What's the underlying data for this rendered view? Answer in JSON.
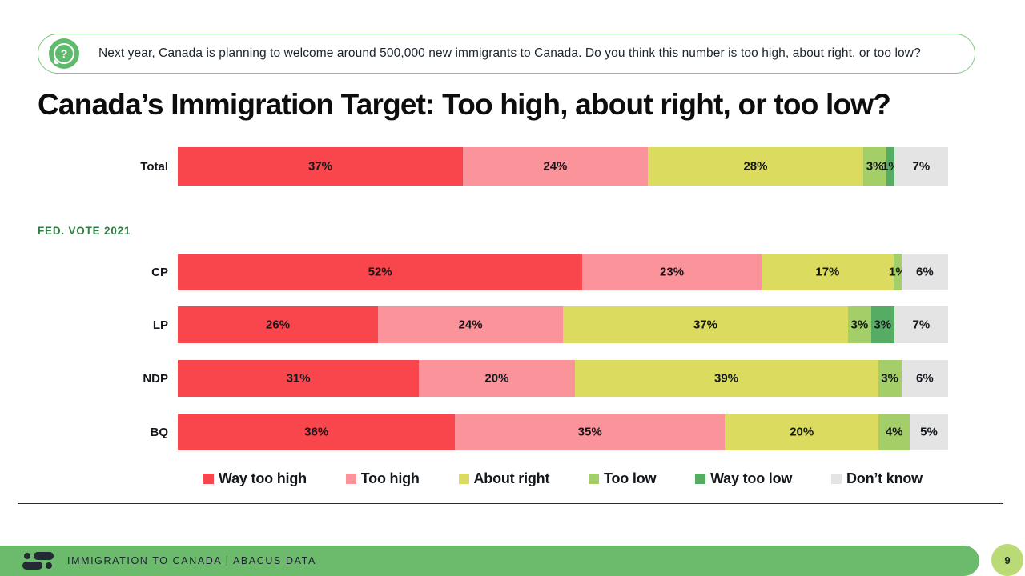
{
  "question_box": {
    "icon": "question-bubble-icon",
    "text": "Next year, Canada is planning to welcome around 500,000 new immigrants to Canada. Do you think this number is too high, about right, or too low?",
    "question_mark": "?"
  },
  "title": "Canada’s Immigration Target: Too high, about right, or too low?",
  "section_label": "FED. VOTE 2021",
  "chart_data": {
    "type": "bar",
    "orientation": "horizontal-stacked",
    "unit": "%",
    "value_range": [
      0,
      100
    ],
    "grid": false,
    "legend_position": "bottom",
    "series_names": [
      "Way too high",
      "Too high",
      "About right",
      "Too low",
      "Way too low",
      "Don’t know"
    ],
    "series_colors": [
      "#f9454c",
      "#fb939a",
      "#dbdb60",
      "#a4ce68",
      "#57ac63",
      "#e4e4e4"
    ],
    "groups": [
      {
        "label": "Total",
        "section": "total",
        "values": [
          37,
          24,
          28,
          3,
          1,
          7
        ]
      },
      {
        "label": "CP",
        "section": "fed-vote",
        "values": [
          52,
          23,
          17,
          1,
          0,
          6
        ]
      },
      {
        "label": "LP",
        "section": "fed-vote",
        "values": [
          26,
          24,
          37,
          3,
          3,
          7
        ]
      },
      {
        "label": "NDP",
        "section": "fed-vote",
        "values": [
          31,
          20,
          39,
          3,
          0,
          6
        ]
      },
      {
        "label": "BQ",
        "section": "fed-vote",
        "values": [
          36,
          35,
          20,
          4,
          0,
          5
        ]
      }
    ]
  },
  "footer": {
    "label": "IMMIGRATION TO CANADA | ABACUS DATA",
    "page_number": "9",
    "logo": "abacus-data-logo"
  },
  "colors": {
    "accent_green": "#6cba6b",
    "question_border_green": "#7fc67f",
    "icon_green": "#5fba6c",
    "section_label_green": "#2f7c42",
    "page_circle_green": "#b9da74",
    "dark_text": "#1c2430"
  }
}
